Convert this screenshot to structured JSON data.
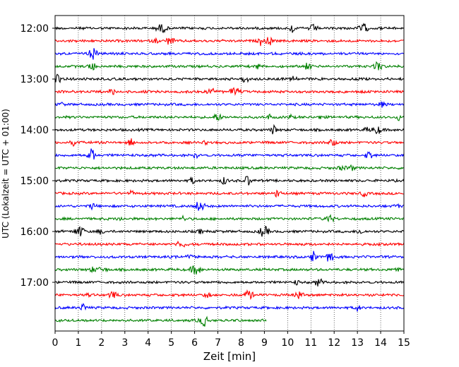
{
  "chart_data": {
    "type": "line",
    "title": "",
    "xlabel": "Zeit  [min]",
    "ylabel": "UTC (Lokalzeit = UTC + 01:00)",
    "xlim": [
      0,
      15
    ],
    "x_ticks": [
      "0",
      "1",
      "2",
      "3",
      "4",
      "5",
      "6",
      "7",
      "8",
      "9",
      "10",
      "11",
      "12",
      "13",
      "14",
      "15"
    ],
    "y_tick_labels": [
      "12:00",
      "13:00",
      "14:00",
      "15:00",
      "16:00",
      "17:00"
    ],
    "traces_per_hour": 4,
    "trace_interval_min": 15,
    "start_time": "12:00",
    "trace_count": 24,
    "last_trace_end_min": 9.1,
    "colors": [
      "#000000",
      "#ff0000",
      "#0000ff",
      "#008000"
    ],
    "grid": {
      "x": true,
      "style": "dotted"
    },
    "legend": "none"
  }
}
